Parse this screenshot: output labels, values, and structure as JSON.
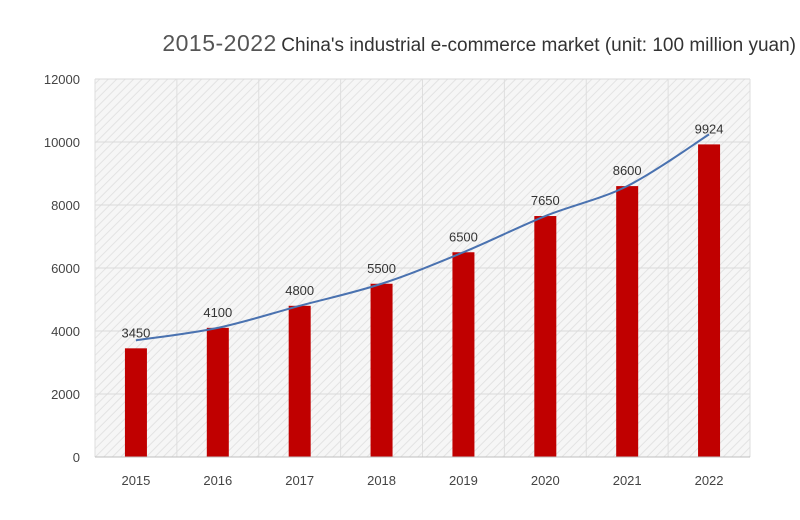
{
  "chart_data": {
    "type": "bar",
    "title_years": "2015-2022",
    "title": "China's industrial e-commerce market (unit: 100 million yuan)",
    "categories": [
      "2015",
      "2016",
      "2017",
      "2018",
      "2019",
      "2020",
      "2021",
      "2022"
    ],
    "values": [
      3450,
      4100,
      4800,
      5500,
      6500,
      7650,
      8600,
      9924
    ],
    "data_labels": [
      "3450",
      "4100",
      "4800",
      "5500",
      "6500",
      "7650",
      "8600",
      "9924"
    ],
    "ylim": [
      0,
      12000
    ],
    "yticks": [
      "0",
      "2000",
      "4000",
      "6000",
      "8000",
      "10000",
      "12000"
    ],
    "xlabel": "",
    "ylabel": "",
    "grid": true,
    "bar_color": "#c00000",
    "trend_color": "#4a72b0",
    "trendline": true
  }
}
